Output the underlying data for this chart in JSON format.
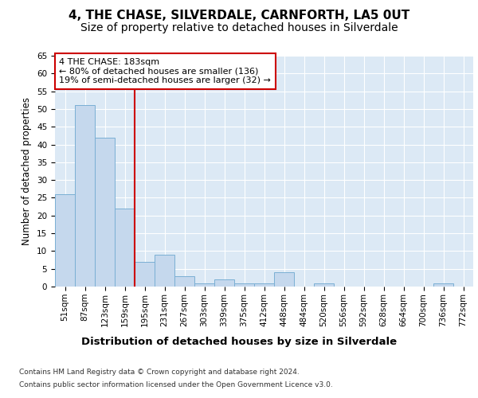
{
  "title": "4, THE CHASE, SILVERDALE, CARNFORTH, LA5 0UT",
  "subtitle": "Size of property relative to detached houses in Silverdale",
  "xlabel": "Distribution of detached houses by size in Silverdale",
  "ylabel": "Number of detached properties",
  "categories": [
    "51sqm",
    "87sqm",
    "123sqm",
    "159sqm",
    "195sqm",
    "231sqm",
    "267sqm",
    "303sqm",
    "339sqm",
    "375sqm",
    "412sqm",
    "448sqm",
    "484sqm",
    "520sqm",
    "556sqm",
    "592sqm",
    "628sqm",
    "664sqm",
    "700sqm",
    "736sqm",
    "772sqm"
  ],
  "values": [
    26,
    51,
    42,
    22,
    7,
    9,
    3,
    1,
    2,
    1,
    1,
    4,
    0,
    1,
    0,
    0,
    0,
    0,
    0,
    1,
    0
  ],
  "bar_color": "#c5d8ed",
  "bar_edge_color": "#7aafd4",
  "vline_x": 3.5,
  "vline_color": "#cc0000",
  "annotation_text": "4 THE CHASE: 183sqm\n← 80% of detached houses are smaller (136)\n19% of semi-detached houses are larger (32) →",
  "annotation_box_color": "#cc0000",
  "ylim": [
    0,
    65
  ],
  "yticks": [
    0,
    5,
    10,
    15,
    20,
    25,
    30,
    35,
    40,
    45,
    50,
    55,
    60,
    65
  ],
  "plot_bg_color": "#dce9f5",
  "footer_line1": "Contains HM Land Registry data © Crown copyright and database right 2024.",
  "footer_line2": "Contains public sector information licensed under the Open Government Licence v3.0.",
  "title_fontsize": 11,
  "subtitle_fontsize": 10,
  "xlabel_fontsize": 9.5,
  "ylabel_fontsize": 8.5,
  "tick_fontsize": 7.5,
  "annotation_fontsize": 8,
  "footer_fontsize": 6.5
}
